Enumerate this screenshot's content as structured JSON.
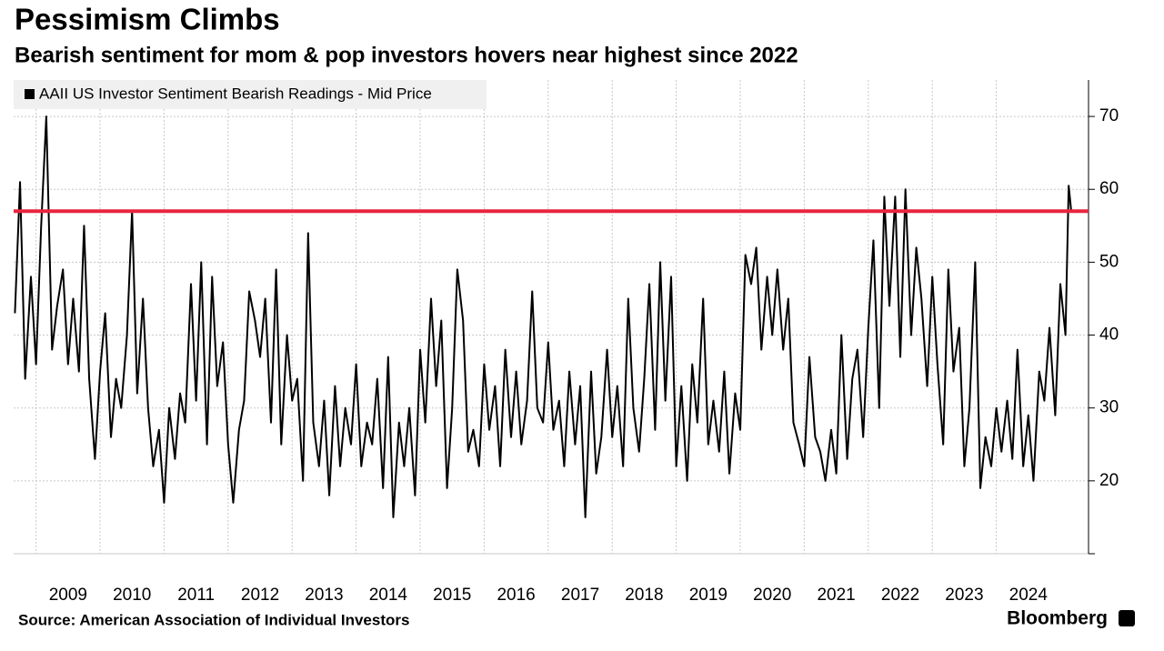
{
  "chart_data": {
    "type": "line",
    "title": "Pessimism Climbs",
    "subtitle": "Bearish sentiment for mom & pop investors hovers near highest since 2022",
    "source": "Source: American Association of Individual Investors",
    "brand": "Bloomberg",
    "series": [
      {
        "name": "AAII US Investor Sentiment Bearish Readings - Mid Price",
        "color": "#000000",
        "x": [
          2008.67,
          2008.75,
          2008.83,
          2008.92,
          2009.0,
          2009.08,
          2009.16,
          2009.25,
          2009.33,
          2009.42,
          2009.5,
          2009.58,
          2009.67,
          2009.75,
          2009.83,
          2009.92,
          2010.0,
          2010.08,
          2010.17,
          2010.25,
          2010.33,
          2010.42,
          2010.5,
          2010.58,
          2010.67,
          2010.75,
          2010.83,
          2010.92,
          2011.0,
          2011.08,
          2011.17,
          2011.25,
          2011.33,
          2011.42,
          2011.5,
          2011.58,
          2011.67,
          2011.75,
          2011.83,
          2011.92,
          2012.0,
          2012.08,
          2012.17,
          2012.25,
          2012.33,
          2012.42,
          2012.5,
          2012.58,
          2012.67,
          2012.75,
          2012.83,
          2012.92,
          2013.0,
          2013.08,
          2013.17,
          2013.25,
          2013.33,
          2013.42,
          2013.5,
          2013.58,
          2013.67,
          2013.75,
          2013.83,
          2013.92,
          2014.0,
          2014.08,
          2014.17,
          2014.25,
          2014.33,
          2014.42,
          2014.5,
          2014.58,
          2014.67,
          2014.75,
          2014.83,
          2014.92,
          2015.0,
          2015.08,
          2015.17,
          2015.25,
          2015.33,
          2015.42,
          2015.5,
          2015.58,
          2015.67,
          2015.75,
          2015.83,
          2015.92,
          2016.0,
          2016.08,
          2016.17,
          2016.25,
          2016.33,
          2016.42,
          2016.5,
          2016.58,
          2016.67,
          2016.75,
          2016.83,
          2016.92,
          2017.0,
          2017.08,
          2017.17,
          2017.25,
          2017.33,
          2017.42,
          2017.5,
          2017.58,
          2017.67,
          2017.75,
          2017.83,
          2017.92,
          2018.0,
          2018.08,
          2018.17,
          2018.25,
          2018.33,
          2018.42,
          2018.5,
          2018.58,
          2018.67,
          2018.75,
          2018.83,
          2018.92,
          2019.0,
          2019.08,
          2019.17,
          2019.25,
          2019.33,
          2019.42,
          2019.5,
          2019.58,
          2019.67,
          2019.75,
          2019.83,
          2019.92,
          2020.0,
          2020.08,
          2020.17,
          2020.25,
          2020.33,
          2020.42,
          2020.5,
          2020.58,
          2020.67,
          2020.75,
          2020.83,
          2020.92,
          2021.0,
          2021.08,
          2021.17,
          2021.25,
          2021.33,
          2021.42,
          2021.5,
          2021.58,
          2021.67,
          2021.75,
          2021.83,
          2021.92,
          2022.0,
          2022.08,
          2022.17,
          2022.25,
          2022.33,
          2022.42,
          2022.5,
          2022.58,
          2022.67,
          2022.75,
          2022.83,
          2022.92,
          2023.0,
          2023.08,
          2023.17,
          2023.25,
          2023.33,
          2023.42,
          2023.5,
          2023.58,
          2023.67,
          2023.75,
          2023.83,
          2023.92,
          2024.0,
          2024.08,
          2024.17,
          2024.25,
          2024.33,
          2024.42,
          2024.5,
          2024.58,
          2024.67,
          2024.75,
          2024.83,
          2024.92,
          2025.0,
          2025.08,
          2025.13,
          2025.17
        ],
        "values": [
          43,
          61,
          34,
          48,
          36,
          55,
          70,
          38,
          44,
          49,
          36,
          45,
          35,
          55,
          34,
          23,
          35,
          43,
          26,
          34,
          30,
          40,
          57,
          32,
          45,
          30,
          22,
          27,
          17,
          30,
          23,
          32,
          28,
          47,
          31,
          50,
          25,
          48,
          33,
          39,
          25,
          17,
          27,
          31,
          46,
          42,
          37,
          45,
          28,
          49,
          25,
          40,
          31,
          34,
          20,
          54,
          28,
          22,
          31,
          18,
          33,
          22,
          30,
          25,
          36,
          22,
          28,
          25,
          34,
          19,
          37,
          15,
          28,
          22,
          30,
          18,
          38,
          28,
          45,
          33,
          42,
          19,
          30,
          49,
          42,
          24,
          27,
          22,
          36,
          27,
          33,
          22,
          38,
          26,
          35,
          25,
          31,
          46,
          30,
          28,
          39,
          27,
          31,
          22,
          35,
          25,
          33,
          15,
          35,
          21,
          26,
          38,
          26,
          33,
          22,
          45,
          30,
          24,
          34,
          47,
          27,
          50,
          31,
          48,
          22,
          33,
          20,
          36,
          28,
          45,
          25,
          31,
          24,
          35,
          21,
          32,
          27,
          51,
          47,
          52,
          38,
          48,
          40,
          49,
          38,
          45,
          28,
          25,
          22,
          37,
          26,
          24,
          20,
          27,
          21,
          40,
          23,
          34,
          38,
          26,
          41,
          53,
          30,
          59,
          44,
          59,
          37,
          60,
          40,
          52,
          45,
          33,
          48,
          36,
          25,
          49,
          35,
          41,
          22,
          30,
          50,
          19,
          26,
          22,
          30,
          24,
          31,
          23,
          38,
          22,
          29,
          20,
          35,
          31,
          41,
          29,
          47,
          40,
          60.5,
          57
        ]
      }
    ],
    "reference_line": {
      "value": 57,
      "color": "#e8253f"
    },
    "xlim": [
      2008.65,
      2025.44
    ],
    "xticks": [
      2009,
      2010,
      2011,
      2012,
      2013,
      2014,
      2015,
      2016,
      2017,
      2018,
      2019,
      2020,
      2021,
      2022,
      2023,
      2024
    ],
    "ylim": [
      10,
      75
    ],
    "yticks": [
      20,
      30,
      40,
      50,
      60,
      70
    ],
    "grid": true
  }
}
